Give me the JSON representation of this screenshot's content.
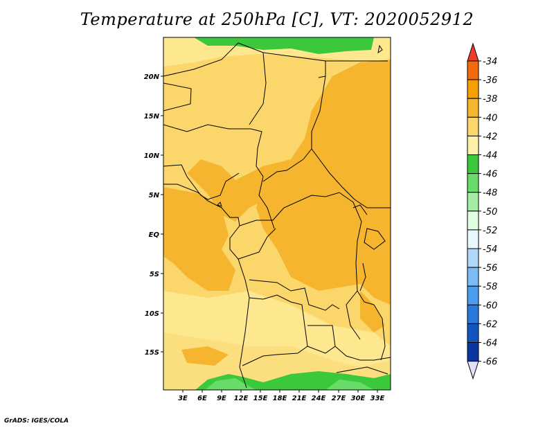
{
  "title": "Temperature at 250hPa [C], VT: 2020052912",
  "credit": "GrADS: IGES/COLA",
  "lat_labels": [
    "20N",
    "15N",
    "10N",
    "5N",
    "EQ",
    "5S",
    "10S",
    "15S"
  ],
  "lon_labels": [
    "3E",
    "6E",
    "9E",
    "12E",
    "15E",
    "18E",
    "21E",
    "24E",
    "27E",
    "30E",
    "33E"
  ],
  "colorbar": {
    "labels": [
      "-34",
      "-36",
      "-38",
      "-40",
      "-42",
      "-44",
      "-46",
      "-48",
      "-50",
      "-52",
      "-54",
      "-56",
      "-58",
      "-60",
      "-62",
      "-64",
      "-66"
    ],
    "colors": [
      "#f03c2a",
      "#f36a0b",
      "#f4a000",
      "#f6b52e",
      "#fad66b",
      "#fdf0a8",
      "#3cc83c",
      "#68dc68",
      "#a4ecA4",
      "#e0ffe0",
      "#e8f8ff",
      "#b0d8f8",
      "#7cbcf4",
      "#4c9cf0",
      "#2a78dc",
      "#1454c0",
      "#0a36a0",
      "#06186a",
      "#e0e0fa"
    ]
  }
}
